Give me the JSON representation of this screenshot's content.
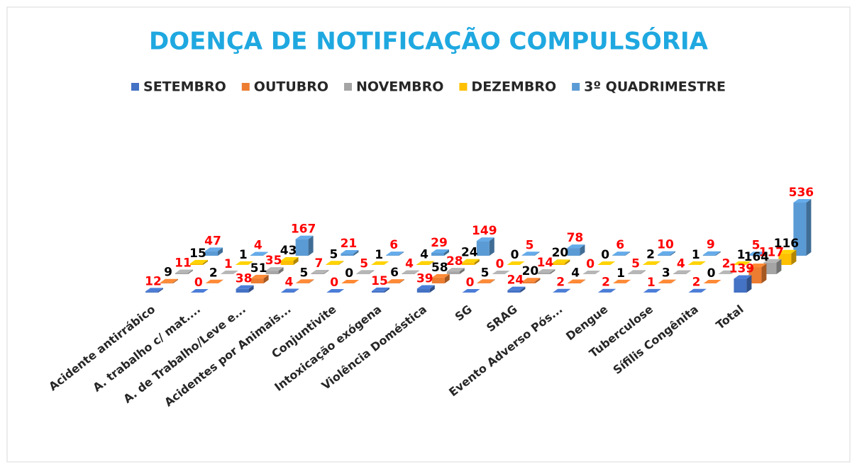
{
  "chart_data": {
    "type": "bar3d",
    "title": "DOENÇA DE NOTIFICAÇÃO COMPULSÓRIA",
    "title_color": "#1fa8e0",
    "legend": "top",
    "categories": [
      "Acidente antirrábico",
      "A. trabalho c/ mat....",
      "A. de Trabalho/Leve e...",
      "Acidentes por Animais...",
      "Conjuntivite",
      "Intoxicação exógena",
      "Violência Doméstica",
      "SG",
      "SRAG",
      "Evento Adverso Pós...",
      "Dengue",
      "Tuberculose",
      "Sífilis Congênita",
      "Total"
    ],
    "series": [
      {
        "name": "SETEMBRO",
        "color": "#4472c4",
        "label_color": "#ff0000",
        "values": [
          12,
          0,
          38,
          4,
          0,
          15,
          39,
          0,
          24,
          2,
          2,
          1,
          2,
          139
        ]
      },
      {
        "name": "OUTUBRO",
        "color": "#ed7d31",
        "label_color": "#000000",
        "values": [
          9,
          2,
          51,
          5,
          0,
          6,
          58,
          5,
          20,
          4,
          1,
          3,
          0,
          164
        ]
      },
      {
        "name": "NOVEMBRO",
        "color": "#a5a5a5",
        "label_color": "#ff0000",
        "values": [
          11,
          1,
          35,
          7,
          5,
          4,
          28,
          0,
          14,
          0,
          5,
          4,
          2,
          117
        ]
      },
      {
        "name": "DEZEMBRO",
        "color": "#ffc000",
        "label_color": "#000000",
        "values": [
          15,
          1,
          43,
          5,
          1,
          4,
          24,
          0,
          20,
          0,
          2,
          1,
          1,
          116
        ]
      },
      {
        "name": "3º QUADRIMESTRE",
        "color": "#5b9bd5",
        "label_color": "#ff0000",
        "values": [
          47,
          4,
          167,
          21,
          6,
          29,
          149,
          5,
          78,
          6,
          10,
          9,
          5,
          536
        ]
      }
    ]
  }
}
